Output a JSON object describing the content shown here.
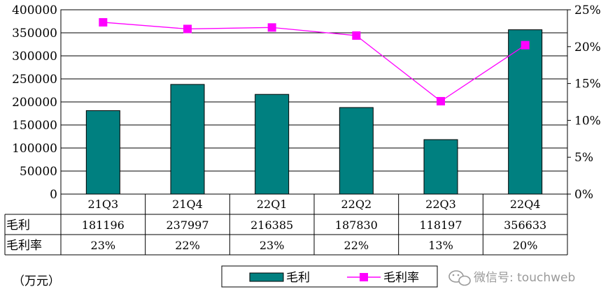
{
  "chart_data": {
    "type": "bar+line",
    "categories": [
      "21Q3",
      "21Q4",
      "22Q1",
      "22Q2",
      "22Q3",
      "22Q4"
    ],
    "series": [
      {
        "name": "毛利",
        "type": "bar",
        "axis": "left",
        "values": [
          181196,
          237997,
          216385,
          187830,
          118197,
          356633
        ]
      },
      {
        "name": "毛利率",
        "type": "line",
        "axis": "right",
        "values": [
          23.3,
          22.4,
          22.6,
          21.5,
          12.6,
          20.2
        ]
      }
    ],
    "left_axis": {
      "min": 0,
      "max": 400000,
      "step": 50000,
      "tick_labels": [
        "0",
        "50000",
        "100000",
        "150000",
        "200000",
        "250000",
        "300000",
        "350000",
        "400000"
      ]
    },
    "right_axis": {
      "min": 0,
      "max": 25,
      "step": 5,
      "tick_labels": [
        "0%",
        "5%",
        "10%",
        "15%",
        "20%",
        "25%"
      ]
    },
    "grid": true,
    "legend_position": "bottom-center",
    "colors": {
      "bar": "#008080",
      "line": "#ff00ff",
      "marker": "#ff00ff"
    },
    "data_table": {
      "rows": [
        {
          "label": "毛利",
          "cells": [
            "181196",
            "237997",
            "216385",
            "187830",
            "118197",
            "356633"
          ]
        },
        {
          "label": "毛利率",
          "cells": [
            "23%",
            "22%",
            "23%",
            "22%",
            "13%",
            "20%"
          ]
        }
      ]
    },
    "unit_note": "（万元）"
  },
  "watermark": {
    "icon": "wechat-icon",
    "text": "微信号: touchweb"
  }
}
